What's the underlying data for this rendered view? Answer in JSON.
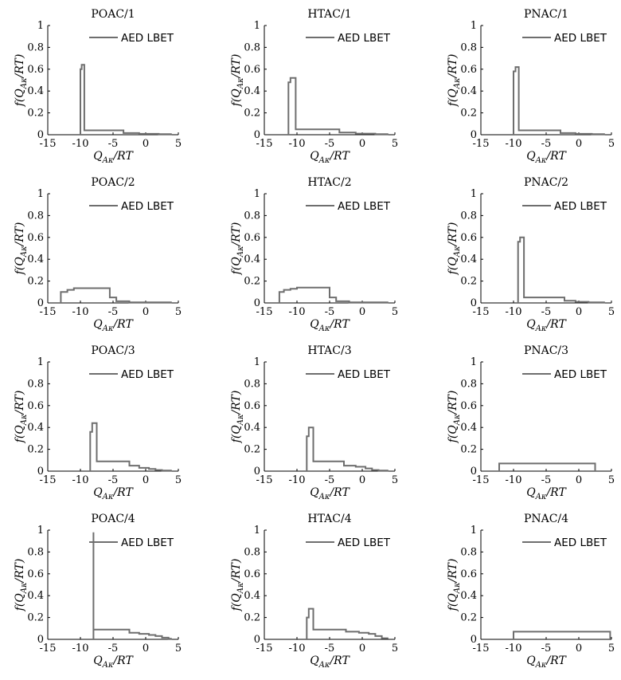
{
  "style": {
    "series_color": "#6e6e6e",
    "axis_color": "#000000"
  },
  "chart_data": [
    {
      "type": "line",
      "title": "POAC/1",
      "xlabel": "Q_Aκ/RT",
      "ylabel": "f(Q_Aκ/RT)",
      "xlim": [
        -15,
        5
      ],
      "ylim": [
        0,
        1
      ],
      "xticks": [
        "-15",
        "-10",
        "-5",
        "0",
        "5"
      ],
      "yticks": [
        "0",
        "0.2",
        "0.4",
        "0.6",
        "0.8",
        "1"
      ],
      "legend": "AED LBET",
      "legend_position": "top-right",
      "series": [
        {
          "x": [
            -10,
            -10,
            -9.8,
            -9.8,
            -9.4,
            -9.4,
            -3.4,
            -3.4,
            -1,
            -1,
            2,
            2,
            4
          ],
          "y": [
            0,
            0.6,
            0.6,
            0.64,
            0.64,
            0.04,
            0.04,
            0.015,
            0.015,
            0.008,
            0.008,
            0.005,
            0.005
          ]
        }
      ]
    },
    {
      "type": "line",
      "title": "HTAC/1",
      "xlabel": "Q_Aκ/RT",
      "ylabel": "f(Q_Aκ/RT)",
      "xlim": [
        -15,
        5
      ],
      "ylim": [
        0,
        1
      ],
      "xticks": [
        "-15",
        "-10",
        "-5",
        "0",
        "5"
      ],
      "yticks": [
        "0",
        "0.2",
        "0.4",
        "0.6",
        "0.8",
        "1"
      ],
      "legend": "AED LBET",
      "legend_position": "top-right",
      "series": [
        {
          "x": [
            -11.3,
            -11.3,
            -11,
            -11,
            -10.2,
            -10.2,
            -3.5,
            -3.5,
            -1,
            -1,
            2,
            2,
            4
          ],
          "y": [
            0,
            0.48,
            0.48,
            0.52,
            0.52,
            0.05,
            0.05,
            0.02,
            0.02,
            0.01,
            0.01,
            0.005,
            0.005
          ]
        }
      ]
    },
    {
      "type": "line",
      "title": "PNAC/1",
      "xlabel": "Q_Aκ/RT",
      "ylabel": "f(Q_Aκ/RT)",
      "xlim": [
        -15,
        5
      ],
      "ylim": [
        0,
        1
      ],
      "xticks": [
        "-15",
        "-10",
        "-5",
        "0",
        "5"
      ],
      "yticks": [
        "0",
        "0.2",
        "0.4",
        "0.6",
        "0.8",
        "1"
      ],
      "legend": "AED LBET",
      "legend_position": "top-right",
      "series": [
        {
          "x": [
            -10,
            -10,
            -9.7,
            -9.7,
            -9.2,
            -9.2,
            -2.8,
            -2.8,
            -0.5,
            -0.5,
            2,
            2,
            4
          ],
          "y": [
            0,
            0.58,
            0.58,
            0.62,
            0.62,
            0.04,
            0.04,
            0.015,
            0.015,
            0.008,
            0.008,
            0.005,
            0.005
          ]
        }
      ]
    },
    {
      "type": "line",
      "title": "POAC/2",
      "xlabel": "Q_Aκ/RT",
      "ylabel": "f(Q_Aκ/RT)",
      "xlim": [
        -15,
        5
      ],
      "ylim": [
        0,
        1
      ],
      "xticks": [
        "-15",
        "-10",
        "-5",
        "0",
        "5"
      ],
      "yticks": [
        "0",
        "0.2",
        "0.4",
        "0.6",
        "0.8",
        "1"
      ],
      "legend": "AED LBET",
      "legend_position": "top-right",
      "series": [
        {
          "x": [
            -13,
            -13,
            -12,
            -12,
            -11,
            -11,
            -5.5,
            -5.5,
            -4.5,
            -4.5,
            -2.5,
            -2.5,
            4
          ],
          "y": [
            0,
            0.1,
            0.1,
            0.12,
            0.12,
            0.135,
            0.135,
            0.05,
            0.05,
            0.015,
            0.015,
            0.005,
            0.005
          ]
        }
      ]
    },
    {
      "type": "line",
      "title": "HTAC/2",
      "xlabel": "Q_Aκ/RT",
      "ylabel": "f(Q_Aκ/RT)",
      "xlim": [
        -15,
        5
      ],
      "ylim": [
        0,
        1
      ],
      "xticks": [
        "-15",
        "-10",
        "-5",
        "0",
        "5"
      ],
      "yticks": [
        "0",
        "0.2",
        "0.4",
        "0.6",
        "0.8",
        "1"
      ],
      "legend": "AED LBET",
      "legend_position": "top-right",
      "series": [
        {
          "x": [
            -12.7,
            -12.7,
            -12,
            -12,
            -11,
            -11,
            -10,
            -10,
            -5,
            -5,
            -4,
            -4,
            -2,
            -2,
            4
          ],
          "y": [
            0,
            0.1,
            0.1,
            0.12,
            0.12,
            0.13,
            0.13,
            0.14,
            0.14,
            0.05,
            0.05,
            0.015,
            0.015,
            0.005,
            0.005
          ]
        }
      ]
    },
    {
      "type": "line",
      "title": "PNAC/2",
      "xlabel": "Q_Aκ/RT",
      "ylabel": "f(Q_Aκ/RT)",
      "xlim": [
        -15,
        5
      ],
      "ylim": [
        0,
        1
      ],
      "xticks": [
        "-15",
        "-10",
        "-5",
        "0",
        "5"
      ],
      "yticks": [
        "0",
        "0.2",
        "0.4",
        "0.6",
        "0.8",
        "1"
      ],
      "legend": "AED LBET",
      "legend_position": "top-right",
      "series": [
        {
          "x": [
            -9.3,
            -9.3,
            -9,
            -9,
            -8.4,
            -8.4,
            -2.2,
            -2.2,
            -0.5,
            -0.5,
            1.5,
            1.5,
            4
          ],
          "y": [
            0,
            0.56,
            0.56,
            0.6,
            0.6,
            0.05,
            0.05,
            0.02,
            0.02,
            0.01,
            0.01,
            0.005,
            0.005
          ]
        }
      ]
    },
    {
      "type": "line",
      "title": "POAC/3",
      "xlabel": "Q_Aκ/RT",
      "ylabel": "f(Q_Aκ/RT)",
      "xlim": [
        -15,
        5
      ],
      "ylim": [
        0,
        1
      ],
      "xticks": [
        "-15",
        "-10",
        "-5",
        "0",
        "5"
      ],
      "yticks": [
        "0",
        "0.2",
        "0.4",
        "0.6",
        "0.8",
        "1"
      ],
      "legend": "AED LBET",
      "legend_position": "top-right",
      "series": [
        {
          "x": [
            -8.5,
            -8.5,
            -8.2,
            -8.2,
            -7.5,
            -7.5,
            -2.5,
            -2.5,
            -1,
            -1,
            0.5,
            0.5,
            1.5,
            1.5,
            2.5,
            2.5,
            4
          ],
          "y": [
            0,
            0.36,
            0.36,
            0.44,
            0.44,
            0.09,
            0.09,
            0.05,
            0.05,
            0.03,
            0.03,
            0.02,
            0.02,
            0.01,
            0.01,
            0.005,
            0.005
          ]
        }
      ]
    },
    {
      "type": "line",
      "title": "HTAC/3",
      "xlabel": "Q_Aκ/RT",
      "ylabel": "f(Q_Aκ/RT)",
      "xlim": [
        -15,
        5
      ],
      "ylim": [
        0,
        1
      ],
      "xticks": [
        "-15",
        "-10",
        "-5",
        "0",
        "5"
      ],
      "yticks": [
        "0",
        "0.2",
        "0.4",
        "0.6",
        "0.8",
        "1"
      ],
      "legend": "AED LBET",
      "legend_position": "top-right",
      "series": [
        {
          "x": [
            -8.5,
            -8.5,
            -8.2,
            -8.2,
            -7.5,
            -7.5,
            -2.8,
            -2.8,
            -1,
            -1,
            0.5,
            0.5,
            1.5,
            1.5,
            2.5,
            2.5,
            4
          ],
          "y": [
            0,
            0.32,
            0.32,
            0.4,
            0.4,
            0.09,
            0.09,
            0.05,
            0.05,
            0.04,
            0.04,
            0.025,
            0.025,
            0.01,
            0.01,
            0.005,
            0.005
          ]
        }
      ]
    },
    {
      "type": "line",
      "title": "PNAC/3",
      "xlabel": "Q_Aκ/RT",
      "ylabel": "f(Q_Aκ/RT)",
      "xlim": [
        -15,
        5
      ],
      "ylim": [
        0,
        1
      ],
      "xticks": [
        "-15",
        "-10",
        "-5",
        "0",
        "5"
      ],
      "yticks": [
        "0",
        "0.2",
        "0.4",
        "0.6",
        "0.8",
        "1"
      ],
      "legend": "AED LBET",
      "legend_position": "top-right",
      "series": [
        {
          "x": [
            -12.2,
            -12.2,
            2.5,
            2.5
          ],
          "y": [
            0,
            0.07,
            0.07,
            0
          ]
        }
      ]
    },
    {
      "type": "line",
      "title": "POAC/4",
      "xlabel": "Q_Aκ/RT",
      "ylabel": "f(Q_Aκ/RT)",
      "xlim": [
        -15,
        5
      ],
      "ylim": [
        0,
        1
      ],
      "xticks": [
        "-15",
        "-10",
        "-5",
        "0",
        "5"
      ],
      "yticks": [
        "0",
        "0.2",
        "0.4",
        "0.6",
        "0.8",
        "1"
      ],
      "legend": "AED LBET",
      "legend_position": "top-right",
      "series": [
        {
          "x": [
            -8,
            -8,
            -8,
            -8,
            -2.5,
            -2.5,
            -1,
            -1,
            0.5,
            0.5,
            1.5,
            1.5,
            2.5,
            2.5,
            3.5,
            3.5,
            4
          ],
          "y": [
            0,
            0.98,
            0.98,
            0.09,
            0.09,
            0.06,
            0.06,
            0.05,
            0.05,
            0.04,
            0.04,
            0.03,
            0.03,
            0.015,
            0.015,
            0.005,
            0.005
          ]
        }
      ]
    },
    {
      "type": "line",
      "title": "HTAC/4",
      "xlabel": "Q_Aκ/RT",
      "ylabel": "f(Q_Aκ/RT)",
      "xlim": [
        -15,
        5
      ],
      "ylim": [
        0,
        1
      ],
      "xticks": [
        "-15",
        "-10",
        "-5",
        "0",
        "5"
      ],
      "yticks": [
        "0",
        "0.2",
        "0.4",
        "0.6",
        "0.8",
        "1"
      ],
      "legend": "AED LBET",
      "legend_position": "top-right",
      "series": [
        {
          "x": [
            -8.5,
            -8.5,
            -8.2,
            -8.2,
            -7.5,
            -7.5,
            -2.5,
            -2.5,
            -0.5,
            -0.5,
            1,
            1,
            2,
            2,
            3,
            3,
            4
          ],
          "y": [
            0,
            0.2,
            0.2,
            0.28,
            0.28,
            0.09,
            0.09,
            0.07,
            0.07,
            0.06,
            0.06,
            0.05,
            0.05,
            0.03,
            0.03,
            0.01,
            0.01
          ]
        }
      ]
    },
    {
      "type": "line",
      "title": "PNAC/4",
      "xlabel": "Q_Aκ/RT",
      "ylabel": "f(Q_Aκ/RT)",
      "xlim": [
        -15,
        5
      ],
      "ylim": [
        0,
        1
      ],
      "xticks": [
        "-15",
        "-10",
        "-5",
        "0",
        "5"
      ],
      "yticks": [
        "0",
        "0.2",
        "0.4",
        "0.6",
        "0.8",
        "1"
      ],
      "legend": "AED LBET",
      "legend_position": "top-right",
      "series": [
        {
          "x": [
            -10,
            -10,
            4.8,
            4.8
          ],
          "y": [
            0,
            0.07,
            0.07,
            0
          ]
        }
      ]
    }
  ]
}
